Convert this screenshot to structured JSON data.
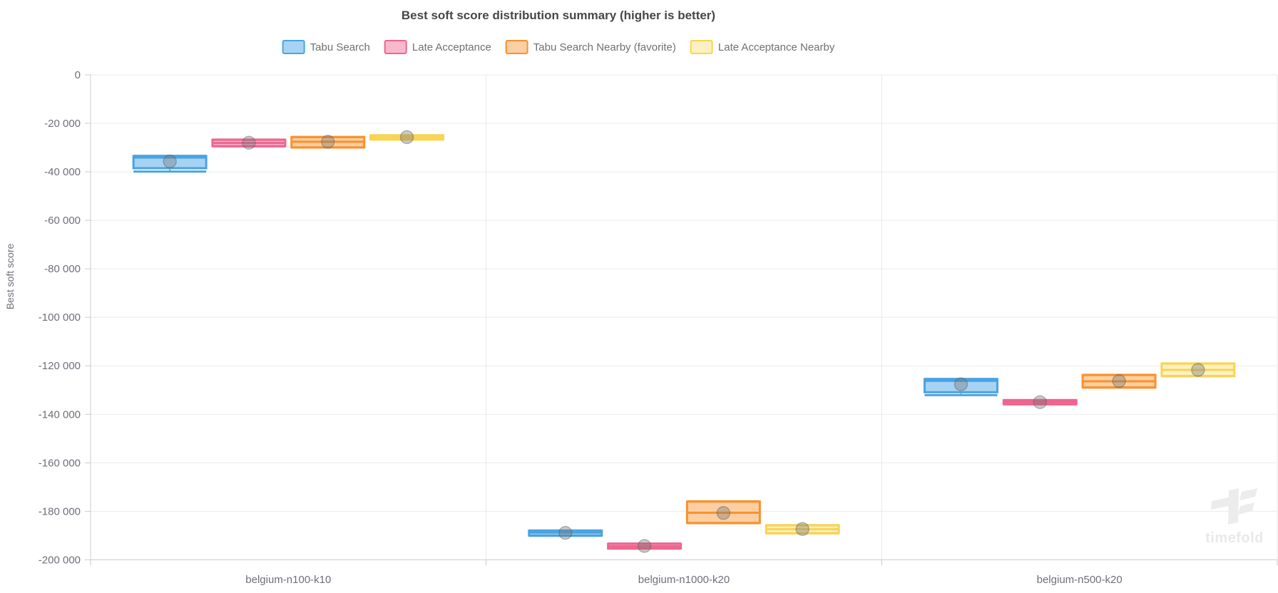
{
  "title": "Best soft score distribution summary (higher is better)",
  "watermark": {
    "text": "timefold"
  },
  "chart_data": {
    "type": "boxplot",
    "title": "Best soft score distribution summary (higher is better)",
    "xlabel": "",
    "ylabel": "Best soft score",
    "ylim": [
      -200000,
      0
    ],
    "y_tick_step": 20000,
    "y_tick_labels": [
      "0",
      "-20 000",
      "-40 000",
      "-60 000",
      "-80 000",
      "-100 000",
      "-120 000",
      "-140 000",
      "-160 000",
      "-180 000",
      "-200 000"
    ],
    "categories": [
      "belgium-n100-k10",
      "belgium-n1000-k20",
      "belgium-n500-k20"
    ],
    "grid": true,
    "legend_position": "top",
    "mean_marker_color": "rgba(115,115,115,0.38)",
    "grid_line_color": "#ebebeb",
    "axis_line_color": "#cccccc",
    "series": [
      {
        "name": "Tabu Search",
        "border_color": "#4AA3E2",
        "fill_color": "#A6D3F4",
        "boxes": [
          {
            "min": -39900,
            "q1": -38500,
            "median": -34100,
            "q3": -33500,
            "max": -33400,
            "mean": -35700
          },
          {
            "min": -190100,
            "q1": -190000,
            "median": -188800,
            "q3": -188000,
            "max": -187900,
            "mean": -188900
          },
          {
            "min": -132100,
            "q1": -130900,
            "median": -126200,
            "q3": -125500,
            "max": -125400,
            "mean": -127600
          }
        ]
      },
      {
        "name": "Late Acceptance",
        "border_color": "#EE6590",
        "fill_color": "#F8B9CB",
        "boxes": [
          {
            "min": -29500,
            "q1": -29400,
            "median": -28100,
            "q3": -26800,
            "max": -26700,
            "mean": -28000
          },
          {
            "min": -195400,
            "q1": -195300,
            "median": -194400,
            "q3": -193400,
            "max": -193300,
            "mean": -194300
          },
          {
            "min": -135900,
            "q1": -135800,
            "median": -135000,
            "q3": -134200,
            "max": -134100,
            "mean": -135000
          }
        ]
      },
      {
        "name": "Tabu Search Nearby (favorite)",
        "border_color": "#F9912F",
        "fill_color": "#FBCFA2",
        "boxes": [
          {
            "min": -30000,
            "q1": -29900,
            "median": -27600,
            "q3": -25700,
            "max": -25600,
            "mean": -27600
          },
          {
            "min": -184900,
            "q1": -184800,
            "median": -180600,
            "q3": -176000,
            "max": -175900,
            "mean": -180700
          },
          {
            "min": -129000,
            "q1": -128900,
            "median": -126400,
            "q3": -123800,
            "max": -123700,
            "mean": -126300
          }
        ]
      },
      {
        "name": "Late Acceptance Nearby",
        "border_color": "#F7D455",
        "fill_color": "#FCF0C2",
        "boxes": [
          {
            "min": -26700,
            "q1": -26600,
            "median": -25800,
            "q3": -25000,
            "max": -24900,
            "mean": -25700
          },
          {
            "min": -189100,
            "q1": -189000,
            "median": -187400,
            "q3": -185800,
            "max": -185700,
            "mean": -187300
          },
          {
            "min": -124300,
            "q1": -124200,
            "median": -121700,
            "q3": -119100,
            "max": -119000,
            "mean": -121700
          }
        ]
      }
    ]
  }
}
